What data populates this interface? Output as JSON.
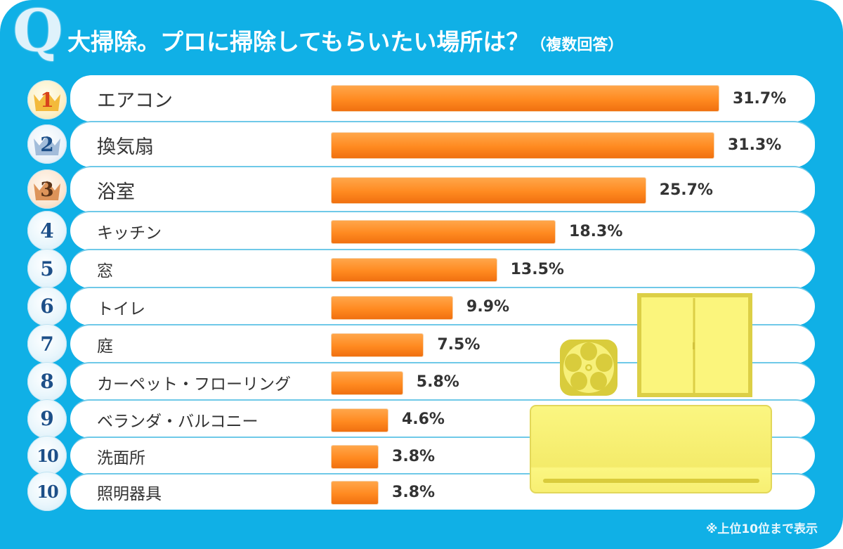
{
  "header": {
    "q_mark": "Q",
    "title": "大掃除。プロに掃除してもらいたい場所は？",
    "subtitle": "（複数回答）"
  },
  "footnote": "※上位10位まで表示",
  "colors": {
    "background": "#10b0e6",
    "row": "#ffffff",
    "bar": "#ff8a20",
    "text": "#333333",
    "rank_text": "#1d4f88",
    "gold": "#f2b42a",
    "silver": "#9ab6d6",
    "bronze": "#d98a4a",
    "illustration": "#f7f07a"
  },
  "illustrations": [
    "ventilation-fan-icon",
    "window-icon",
    "air-conditioner-icon"
  ],
  "chart_data": {
    "type": "bar",
    "orientation": "horizontal",
    "title": "大掃除。プロに掃除してもらいたい場所は？（複数回答）",
    "xlabel": "",
    "ylabel": "",
    "unit": "%",
    "xlim": [
      0,
      35
    ],
    "grid": false,
    "legend": "none",
    "categories": [
      "エアコン",
      "換気扇",
      "浴室",
      "キッチン",
      "窓",
      "トイレ",
      "庭",
      "カーペット・フローリング",
      "ベランダ・バルコニー",
      "洗面所",
      "照明器具"
    ],
    "ranks": [
      "1",
      "2",
      "3",
      "4",
      "5",
      "6",
      "7",
      "8",
      "9",
      "10",
      "10"
    ],
    "values": [
      31.7,
      31.3,
      25.7,
      18.3,
      13.5,
      9.9,
      7.5,
      5.8,
      4.6,
      3.8,
      3.8
    ],
    "labels": [
      "31.7%",
      "31.3%",
      "25.7%",
      "18.3%",
      "13.5%",
      "9.9%",
      "7.5%",
      "5.8%",
      "4.6%",
      "3.8%",
      "3.8%"
    ],
    "annotations": [
      "※上位10位まで表示"
    ]
  }
}
